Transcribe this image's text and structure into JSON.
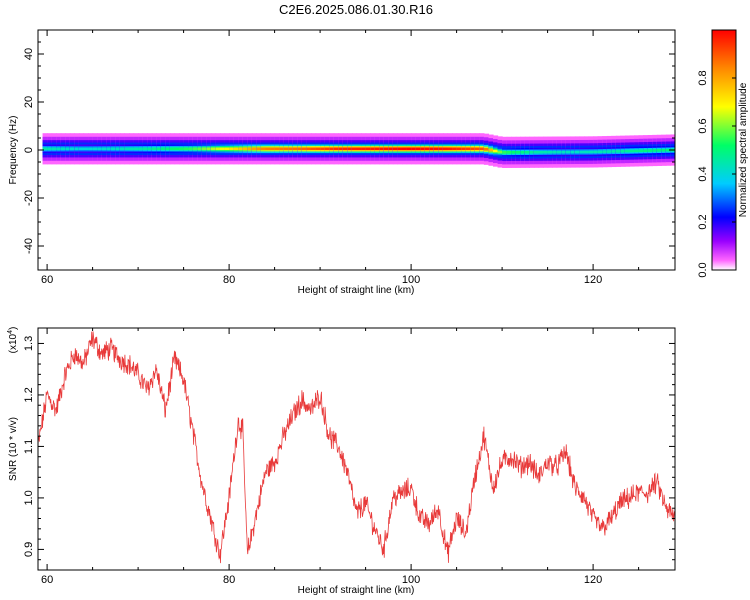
{
  "title": "C2E6.2025.086.01.30.R16",
  "chart_data": [
    {
      "type": "heatmap",
      "xlabel": "Height of straight line (km)",
      "ylabel": "Frequency (Hz)",
      "xlim": [
        59,
        129
      ],
      "ylim": [
        -50,
        50
      ],
      "xticks": [
        60,
        80,
        100,
        120
      ],
      "yticks": [
        40,
        20,
        0,
        -20,
        -40
      ],
      "grid": false,
      "colorbar": {
        "label": "Normalized spectral amplitude",
        "range": [
          0.0,
          1.0
        ],
        "ticks": [
          "0.0",
          "0.2",
          "0.4",
          "0.6",
          "0.8"
        ],
        "colormap": [
          "#ffffff",
          "#ff66ff",
          "#8800ff",
          "#0000ff",
          "#00ccff",
          "#00ff66",
          "#ffff00",
          "#ff8800",
          "#ff0000"
        ]
      },
      "band": {
        "center_freq_hz": [
          [
            60,
            0.5
          ],
          [
            108,
            0.5
          ],
          [
            110,
            -1.0
          ],
          [
            120,
            -0.8
          ],
          [
            129,
            0.0
          ]
        ],
        "peak_amplitude": [
          [
            60,
            0.45
          ],
          [
            64,
            0.4
          ],
          [
            70,
            0.45
          ],
          [
            76,
            0.55
          ],
          [
            80,
            0.7
          ],
          [
            84,
            0.85
          ],
          [
            88,
            0.88
          ],
          [
            92,
            0.95
          ],
          [
            96,
            0.97
          ],
          [
            100,
            1.0
          ],
          [
            104,
            0.97
          ],
          [
            108,
            0.9
          ],
          [
            110,
            0.55
          ],
          [
            114,
            0.45
          ],
          [
            118,
            0.42
          ],
          [
            122,
            0.45
          ],
          [
            126,
            0.5
          ],
          [
            129,
            0.5
          ]
        ]
      }
    },
    {
      "type": "line",
      "xlabel": "Height of straight line (km)",
      "ylabel": "SNR (10 * v/v)",
      "yscale_label": "(x10",
      "yscale_exponent": "4",
      "xlim": [
        59,
        129
      ],
      "ylim": [
        0.86,
        1.33
      ],
      "xticks": [
        60,
        80,
        100,
        120
      ],
      "yticks": [
        "0.9",
        "1.0",
        "1.1",
        "1.2",
        "1.3"
      ],
      "line_color": "#e83a3a",
      "series": [
        {
          "x": [
            59,
            60,
            61,
            62,
            63,
            64,
            65,
            66,
            67,
            68,
            69,
            70,
            71,
            72,
            73,
            74,
            75,
            76,
            77,
            78,
            79,
            80,
            81,
            81.5,
            82,
            83,
            84,
            85,
            86,
            87,
            88,
            89,
            90,
            91,
            92,
            93,
            94,
            95,
            96,
            97,
            98,
            99,
            100,
            101,
            102,
            103,
            104,
            105,
            106,
            107,
            108,
            109,
            110,
            111,
            112,
            113,
            114,
            115,
            116,
            117,
            118,
            119,
            120,
            121,
            122,
            123,
            124,
            125,
            126,
            127,
            128,
            129
          ],
          "values": [
            1.1,
            1.2,
            1.17,
            1.24,
            1.28,
            1.26,
            1.31,
            1.28,
            1.29,
            1.27,
            1.26,
            1.24,
            1.21,
            1.25,
            1.17,
            1.27,
            1.23,
            1.13,
            1.03,
            0.96,
            0.89,
            1.0,
            1.15,
            1.13,
            0.89,
            0.97,
            1.05,
            1.07,
            1.12,
            1.16,
            1.19,
            1.17,
            1.2,
            1.12,
            1.1,
            1.05,
            0.97,
            0.99,
            0.94,
            0.9,
            1.0,
            1.01,
            1.02,
            0.96,
            0.95,
            0.98,
            0.89,
            0.96,
            0.93,
            1.04,
            1.12,
            1.02,
            1.07,
            1.08,
            1.06,
            1.07,
            1.04,
            1.07,
            1.06,
            1.09,
            1.02,
            1.0,
            0.96,
            0.94,
            0.96,
            0.99,
            1.0,
            1.01,
            1.01,
            1.03,
            0.98,
            0.96
          ]
        }
      ]
    }
  ]
}
